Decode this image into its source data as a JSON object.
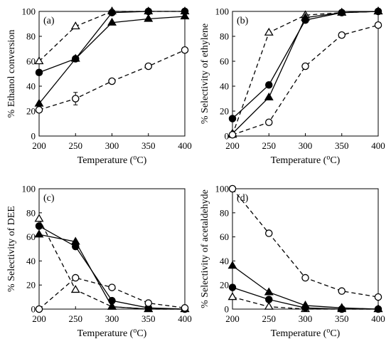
{
  "chart_data": [
    {
      "type": "line",
      "panel_label": "(a)",
      "xlabel": "Temperature (°C)",
      "xlabel_main": "Temperature (",
      "xlabel_sup": "o",
      "xlabel_end": "C)",
      "ylabel": "% Ethanol conversion",
      "xlim": [
        200,
        400
      ],
      "ylim": [
        0,
        100
      ],
      "xticks": [
        200,
        250,
        300,
        350,
        400
      ],
      "yticks": [
        0,
        20,
        40,
        60,
        80,
        100
      ],
      "x": [
        200,
        250,
        300,
        350,
        400
      ],
      "series": [
        {
          "marker": "open-triangle",
          "dash": true,
          "values": [
            60,
            88,
            100,
            100,
            100
          ]
        },
        {
          "marker": "filled-circle",
          "dash": false,
          "values": [
            51,
            62,
            99,
            100,
            100
          ]
        },
        {
          "marker": "filled-triangle",
          "dash": false,
          "values": [
            26,
            62,
            91,
            94,
            96
          ]
        },
        {
          "marker": "open-circle",
          "dash": true,
          "values": [
            21,
            30,
            44,
            56,
            69
          ],
          "error": [
            0,
            5,
            0,
            0,
            0
          ]
        }
      ]
    },
    {
      "type": "line",
      "panel_label": "(b)",
      "xlabel": "Temperature (°C)",
      "xlabel_main": "Temperature (",
      "xlabel_sup": "o",
      "xlabel_end": "C)",
      "ylabel": "% Selectivity of ethylene",
      "xlim": [
        200,
        400
      ],
      "ylim": [
        0,
        100
      ],
      "xticks": [
        200,
        250,
        300,
        350,
        400
      ],
      "yticks": [
        0,
        20,
        40,
        60,
        80,
        100
      ],
      "x": [
        200,
        250,
        300,
        350,
        400
      ],
      "series": [
        {
          "marker": "open-triangle",
          "dash": true,
          "values": [
            1,
            83,
            97,
            99,
            100
          ]
        },
        {
          "marker": "filled-circle",
          "dash": false,
          "values": [
            14,
            41,
            93,
            99,
            100
          ]
        },
        {
          "marker": "filled-triangle",
          "dash": false,
          "values": [
            2,
            31,
            95,
            99,
            100
          ]
        },
        {
          "marker": "open-circle",
          "dash": true,
          "values": [
            1,
            11,
            56,
            81,
            89
          ]
        }
      ]
    },
    {
      "type": "line",
      "panel_label": "(c)",
      "xlabel": "Temperature (°C)",
      "xlabel_main": "Temperature (",
      "xlabel_sup": "o",
      "xlabel_end": "C)",
      "ylabel": "% Selectivity of DEE",
      "xlim": [
        200,
        400
      ],
      "ylim": [
        0,
        100
      ],
      "xticks": [
        200,
        250,
        300,
        350,
        400
      ],
      "yticks": [
        0,
        20,
        40,
        60,
        80,
        100
      ],
      "x": [
        200,
        250,
        300,
        350,
        400
      ],
      "series": [
        {
          "marker": "open-triangle",
          "dash": true,
          "values": [
            75,
            16,
            2,
            0,
            0
          ]
        },
        {
          "marker": "filled-circle",
          "dash": false,
          "values": [
            69,
            52,
            7,
            1,
            0
          ]
        },
        {
          "marker": "filled-triangle",
          "dash": false,
          "values": [
            62,
            56,
            2,
            0,
            0
          ]
        },
        {
          "marker": "open-circle",
          "dash": true,
          "values": [
            0,
            26,
            18,
            5,
            1
          ]
        }
      ]
    },
    {
      "type": "line",
      "panel_label": "(d)",
      "xlabel": "Temperature (°C)",
      "xlabel_main": "Temperature (",
      "xlabel_sup": "o",
      "xlabel_end": "C)",
      "ylabel": "% Selectivity of acetaldehyde",
      "xlim": [
        200,
        400
      ],
      "ylim": [
        0,
        100
      ],
      "xticks": [
        200,
        250,
        300,
        350,
        400
      ],
      "yticks": [
        0,
        20,
        40,
        60,
        80,
        100
      ],
      "x": [
        200,
        250,
        300,
        350,
        400
      ],
      "series": [
        {
          "marker": "open-triangle",
          "dash": true,
          "values": [
            10,
            2,
            0,
            0,
            0
          ]
        },
        {
          "marker": "filled-circle",
          "dash": false,
          "values": [
            18,
            8,
            1,
            0,
            0
          ]
        },
        {
          "marker": "filled-triangle",
          "dash": false,
          "values": [
            36,
            14,
            3,
            1,
            0
          ]
        },
        {
          "marker": "open-circle",
          "dash": true,
          "values": [
            100,
            63,
            26,
            15,
            10
          ]
        }
      ]
    }
  ],
  "colors": {
    "ink": "#000000",
    "background": "#ffffff"
  }
}
